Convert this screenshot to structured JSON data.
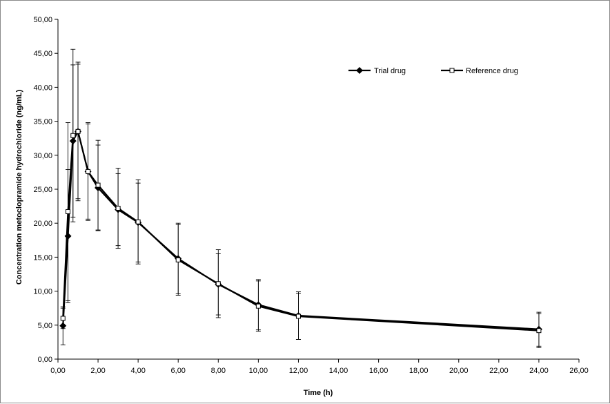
{
  "chart_data": {
    "type": "line",
    "title": "",
    "xlabel": "Time (h)",
    "ylabel": "Concentration  metoclopramide  hydrochloride  (ng/mL)",
    "xlim": [
      0,
      26
    ],
    "ylim": [
      0,
      50
    ],
    "x_ticks": [
      "0,00",
      "2,00",
      "4,00",
      "6,00",
      "8,00",
      "10,00",
      "12,00",
      "14,00",
      "16,00",
      "18,00",
      "20,00",
      "22,00",
      "24,00",
      "26,00"
    ],
    "y_ticks": [
      "0,00",
      "5,00",
      "10,00",
      "15,00",
      "20,00",
      "25,00",
      "30,00",
      "35,00",
      "40,00",
      "45,00",
      "50,00"
    ],
    "grid": false,
    "legend_position": "top-right",
    "error_bars": true,
    "series": [
      {
        "name": "Trial drug",
        "marker": "filled-diamond",
        "color": "#000000",
        "x": [
          0.25,
          0.5,
          0.75,
          1.0,
          1.5,
          2.0,
          3.0,
          4.0,
          6.0,
          8.0,
          10.0,
          12.0,
          24.0
        ],
        "y": [
          4.9,
          18.1,
          32.1,
          33.5,
          27.6,
          25.2,
          22.0,
          20.1,
          14.8,
          11.0,
          8.0,
          6.4,
          4.4
        ],
        "err": [
          2.8,
          9.8,
          11.2,
          10.2,
          7.2,
          6.3,
          5.3,
          5.8,
          5.2,
          4.5,
          3.7,
          3.5,
          2.5
        ]
      },
      {
        "name": "Reference drug",
        "marker": "open-square",
        "color": "#000000",
        "x": [
          0.25,
          0.5,
          0.75,
          1.0,
          1.5,
          2.0,
          3.0,
          4.0,
          6.0,
          8.0,
          10.0,
          12.0,
          24.0
        ],
        "y": [
          6.0,
          21.7,
          32.9,
          33.5,
          27.6,
          25.6,
          22.2,
          20.2,
          14.6,
          11.1,
          7.8,
          6.3,
          4.2
        ],
        "err": [
          1.5,
          13.1,
          12.7,
          9.9,
          7.0,
          6.6,
          5.9,
          6.2,
          5.2,
          5.0,
          3.7,
          3.4,
          2.5
        ]
      }
    ]
  }
}
